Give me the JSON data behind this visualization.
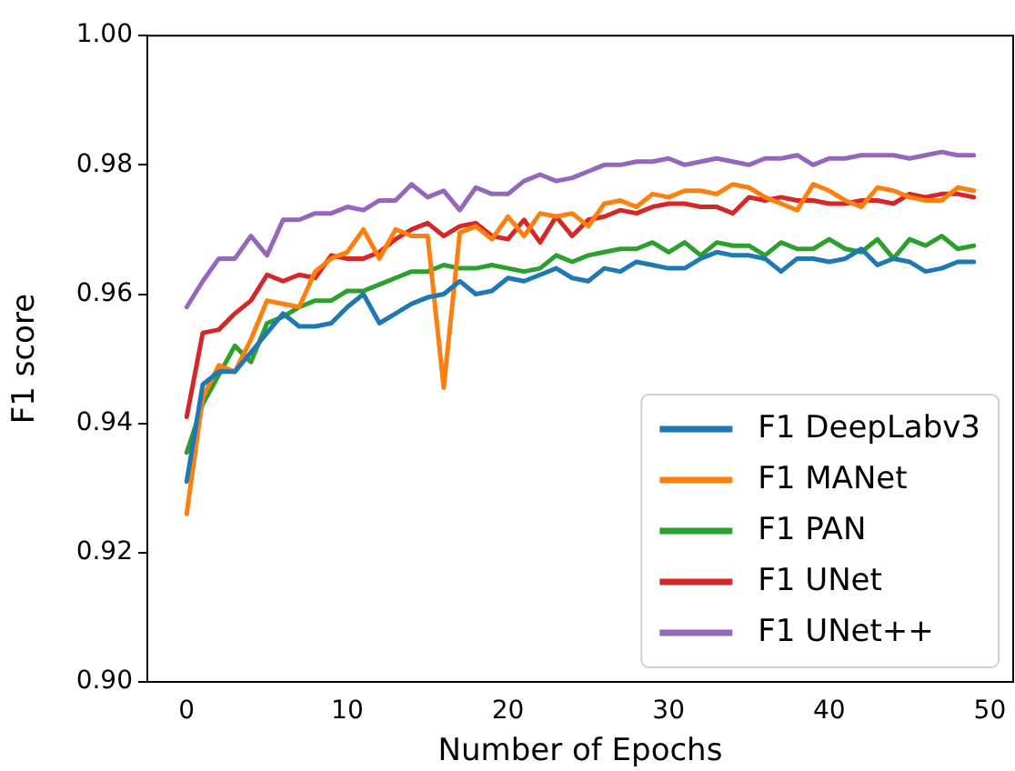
{
  "chart_data": {
    "type": "line",
    "xlabel": "Number of Epochs",
    "ylabel": "F1 score",
    "x": [
      0,
      1,
      2,
      3,
      4,
      5,
      6,
      7,
      8,
      9,
      10,
      11,
      12,
      13,
      14,
      15,
      16,
      17,
      18,
      19,
      20,
      21,
      22,
      23,
      24,
      25,
      26,
      27,
      28,
      29,
      30,
      31,
      32,
      33,
      34,
      35,
      36,
      37,
      38,
      39,
      40,
      41,
      42,
      43,
      44,
      45,
      46,
      47,
      48,
      49
    ],
    "series": [
      {
        "name": "F1 DeepLabv3",
        "color": "#1f77b4",
        "values": [
          0.931,
          0.946,
          0.948,
          0.948,
          0.951,
          0.954,
          0.957,
          0.955,
          0.955,
          0.9555,
          0.958,
          0.96,
          0.9555,
          0.957,
          0.9585,
          0.9595,
          0.96,
          0.962,
          0.96,
          0.9605,
          0.9625,
          0.962,
          0.963,
          0.964,
          0.9625,
          0.962,
          0.964,
          0.9635,
          0.965,
          0.9645,
          0.964,
          0.964,
          0.9655,
          0.9665,
          0.966,
          0.966,
          0.9655,
          0.9635,
          0.9655,
          0.9655,
          0.965,
          0.9655,
          0.967,
          0.9645,
          0.9655,
          0.965,
          0.9635,
          0.964,
          0.965,
          0.965
        ]
      },
      {
        "name": "F1 MANet",
        "color": "#ff7f0e",
        "values": [
          0.926,
          0.944,
          0.949,
          0.948,
          0.953,
          0.959,
          0.9585,
          0.958,
          0.9635,
          0.9655,
          0.9665,
          0.97,
          0.9655,
          0.97,
          0.969,
          0.969,
          0.9455,
          0.9695,
          0.9705,
          0.9685,
          0.972,
          0.969,
          0.9725,
          0.972,
          0.9725,
          0.9705,
          0.974,
          0.9745,
          0.9735,
          0.9755,
          0.975,
          0.976,
          0.976,
          0.9755,
          0.977,
          0.9765,
          0.975,
          0.974,
          0.973,
          0.977,
          0.976,
          0.9745,
          0.9735,
          0.9765,
          0.976,
          0.975,
          0.9745,
          0.9745,
          0.9765,
          0.976
        ]
      },
      {
        "name": "F1 PAN",
        "color": "#2ca02c",
        "values": [
          0.9355,
          0.943,
          0.9475,
          0.952,
          0.9495,
          0.9555,
          0.9565,
          0.958,
          0.959,
          0.959,
          0.9605,
          0.9605,
          0.9615,
          0.9625,
          0.9635,
          0.9635,
          0.9645,
          0.964,
          0.964,
          0.9645,
          0.964,
          0.9635,
          0.964,
          0.966,
          0.965,
          0.966,
          0.9665,
          0.967,
          0.967,
          0.968,
          0.9665,
          0.968,
          0.966,
          0.968,
          0.9675,
          0.9675,
          0.966,
          0.968,
          0.967,
          0.967,
          0.9685,
          0.967,
          0.9665,
          0.9685,
          0.9655,
          0.9685,
          0.9675,
          0.969,
          0.967,
          0.9675
        ]
      },
      {
        "name": "F1 UNet",
        "color": "#d62728",
        "values": [
          0.941,
          0.954,
          0.9545,
          0.957,
          0.959,
          0.963,
          0.962,
          0.963,
          0.9625,
          0.966,
          0.9655,
          0.9655,
          0.9665,
          0.9685,
          0.97,
          0.971,
          0.969,
          0.9705,
          0.971,
          0.969,
          0.9685,
          0.9715,
          0.968,
          0.972,
          0.969,
          0.9715,
          0.972,
          0.973,
          0.9725,
          0.9735,
          0.974,
          0.974,
          0.9735,
          0.9735,
          0.9725,
          0.975,
          0.9745,
          0.975,
          0.9745,
          0.9745,
          0.974,
          0.974,
          0.9745,
          0.9745,
          0.974,
          0.9755,
          0.975,
          0.9755,
          0.9755,
          0.975
        ]
      },
      {
        "name": "F1 UNet++",
        "color": "#9467bd",
        "values": [
          0.958,
          0.962,
          0.9655,
          0.9655,
          0.969,
          0.966,
          0.9715,
          0.9715,
          0.9725,
          0.9725,
          0.9735,
          0.973,
          0.9745,
          0.9745,
          0.977,
          0.975,
          0.976,
          0.973,
          0.9765,
          0.9755,
          0.9755,
          0.9775,
          0.9785,
          0.9775,
          0.978,
          0.979,
          0.98,
          0.98,
          0.9805,
          0.9805,
          0.981,
          0.98,
          0.9805,
          0.981,
          0.9805,
          0.98,
          0.981,
          0.981,
          0.9815,
          0.98,
          0.981,
          0.981,
          0.9815,
          0.9815,
          0.9815,
          0.981,
          0.9815,
          0.982,
          0.9815,
          0.9815
        ]
      }
    ],
    "xlim": [
      -2.45,
      51.45
    ],
    "xticks": [
      0,
      10,
      20,
      30,
      40,
      50
    ],
    "ylim": [
      0.9,
      1.0
    ],
    "yticks": [
      {
        "value": 0.9,
        "label": "0.90"
      },
      0.92,
      0.94,
      0.96,
      0.98,
      {
        "value": 1,
        "label": "1.00"
      }
    ],
    "grid": false,
    "legend": "bottom right",
    "marker": "none",
    "line_style": "solid"
  }
}
